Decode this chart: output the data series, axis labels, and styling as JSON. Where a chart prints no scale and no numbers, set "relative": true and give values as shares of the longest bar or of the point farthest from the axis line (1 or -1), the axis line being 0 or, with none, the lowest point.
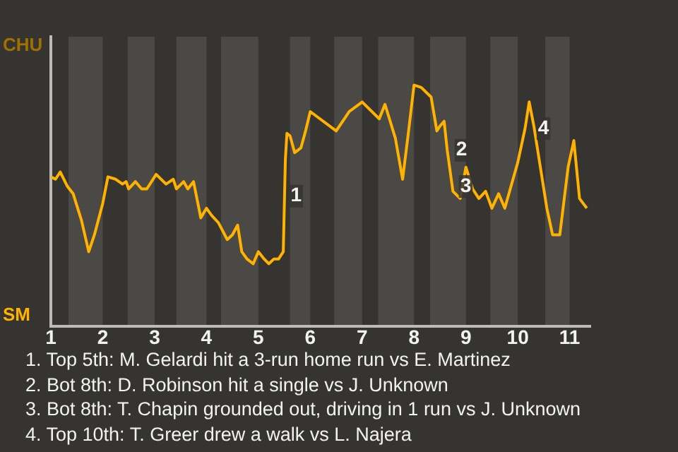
{
  "chart_data": {
    "type": "line",
    "relative": true,
    "x": [
      1,
      1.09,
      1.18,
      1.32,
      1.43,
      1.59,
      1.73,
      1.84,
      2,
      2.1,
      2.25,
      2.38,
      2.45,
      2.5,
      2.63,
      2.75,
      2.85,
      3.03,
      3.22,
      3.36,
      3.42,
      3.56,
      3.64,
      3.75,
      3.89,
      4,
      4.1,
      4.23,
      4.4,
      4.5,
      4.6,
      4.68,
      4.78,
      4.9,
      5,
      5.11,
      5.2,
      5.3,
      5.39,
      5.48,
      5.52,
      5.55,
      5.61,
      5.7,
      5.82,
      5.91,
      6,
      6.5,
      6.75,
      7,
      7.33,
      7.44,
      7.64,
      7.78,
      7.89,
      8,
      8.14,
      8.33,
      8.44,
      8.5,
      8.58,
      8.64,
      8.75,
      8.89,
      9,
      9.13,
      9.25,
      9.38,
      9.5,
      9.63,
      9.75,
      10,
      10.14,
      10.22,
      10.31,
      10.56,
      10.67,
      10.81,
      10.97,
      11.08,
      11.19,
      11.33
    ],
    "series": [
      {
        "color": "#ffb300",
        "values": [
          0.62,
          0.61,
          0.64,
          0.58,
          0.55,
          0.44,
          0.31,
          0.38,
          0.51,
          0.62,
          0.61,
          0.59,
          0.6,
          0.57,
          0.6,
          0.57,
          0.57,
          0.63,
          0.59,
          0.61,
          0.57,
          0.6,
          0.57,
          0.6,
          0.45,
          0.49,
          0.46,
          0.43,
          0.36,
          0.38,
          0.42,
          0.31,
          0.28,
          0.26,
          0.31,
          0.28,
          0.26,
          0.28,
          0.28,
          0.31,
          0.69,
          0.8,
          0.79,
          0.72,
          0.74,
          0.81,
          0.89,
          0.81,
          0.89,
          0.93,
          0.86,
          0.92,
          0.78,
          0.61,
          0.8,
          1,
          0.99,
          0.95,
          0.81,
          0.83,
          0.85,
          0.73,
          0.56,
          0.53,
          0.66,
          0.57,
          0.53,
          0.56,
          0.49,
          0.55,
          0.49,
          0.68,
          0.82,
          0.93,
          0.83,
          0.49,
          0.38,
          0.38,
          0.66,
          0.77,
          0.53,
          0.49
        ]
      }
    ],
    "xlim": [
      1,
      11.4
    ],
    "xticks": [
      1,
      2,
      3,
      4,
      5,
      6,
      7,
      8,
      9,
      10,
      11
    ],
    "bands": [
      {
        "axis": "x",
        "from": 1.34,
        "to": 2,
        "color": "#4b4946"
      },
      {
        "axis": "x",
        "from": 2.48,
        "to": 3,
        "color": "#4b4946"
      },
      {
        "axis": "x",
        "from": 3.42,
        "to": 4,
        "color": "#4b4946"
      },
      {
        "axis": "x",
        "from": 4.28,
        "to": 5,
        "color": "#4b4946"
      },
      {
        "axis": "x",
        "from": 5.61,
        "to": 6,
        "color": "#4b4946"
      },
      {
        "axis": "x",
        "from": 6.46,
        "to": 7,
        "color": "#4b4946"
      },
      {
        "axis": "x",
        "from": 7.31,
        "to": 8,
        "color": "#4b4946"
      },
      {
        "axis": "x",
        "from": 8.31,
        "to": 9,
        "color": "#4b4946"
      },
      {
        "axis": "x",
        "from": 9.47,
        "to": 10,
        "color": "#4b4946"
      },
      {
        "axis": "x",
        "from": 10.53,
        "to": 11,
        "color": "#4b4946"
      }
    ],
    "annotations": [
      "CHU",
      "SM",
      {
        "text": "1",
        "x": 5.59,
        "y": 0.54
      },
      {
        "text": "2",
        "x": 8.78,
        "y": 0.73
      },
      {
        "text": "3",
        "x": 8.86,
        "y": 0.58
      },
      {
        "text": "4",
        "x": 10.36,
        "y": 0.82
      },
      "1. Top 5th: M. Gelardi hit a 3-run home run vs E. Martinez",
      "2. Bot 8th: D. Robinson hit a single vs J. Unknown",
      "3. Bot 8th: T. Chapin grounded out, driving in 1 run vs J. Unknown",
      "4. Top 10th: T. Greer drew a walk vs L. Najera"
    ],
    "legend": false,
    "marker": "none",
    "line_style": "solid"
  }
}
